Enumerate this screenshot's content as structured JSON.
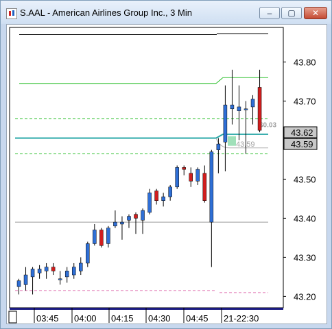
{
  "window": {
    "title": "S.AAL - American Airlines Group Inc., 3 Min",
    "controls": {
      "minimize": "–",
      "maximize": "▢",
      "close": "✕"
    }
  },
  "chart_data": {
    "type": "candlestick",
    "y_ticks": [
      "43.80",
      "43.70",
      "43.60",
      "43.50",
      "43.40",
      "43.30",
      "43.20"
    ],
    "y_tick_values": [
      43.8,
      43.7,
      43.6,
      43.5,
      43.4,
      43.3,
      43.2
    ],
    "x_ticks": [
      "03:45",
      "04:00",
      "04:15",
      "04:30",
      "04:45",
      "21-22:30"
    ],
    "price_labels": {
      "last": "43.62",
      "bid": "43.59",
      "change": "$0.03",
      "bid_marker": "43.59"
    },
    "levels": {
      "black": 43.87,
      "upper_green": 43.745,
      "upper_green_solid": 43.76,
      "green_dashed_upper": 43.655,
      "teal": 43.605,
      "green_dashed_lower": 43.565,
      "gray": 43.39,
      "pink": 43.215
    },
    "candles": [
      {
        "o": 43.225,
        "h": 43.245,
        "l": 43.205,
        "c": 43.24
      },
      {
        "o": 43.23,
        "h": 43.275,
        "l": 43.215,
        "c": 43.255
      },
      {
        "o": 43.25,
        "h": 43.275,
        "l": 43.205,
        "c": 43.27
      },
      {
        "o": 43.26,
        "h": 43.28,
        "l": 43.245,
        "c": 43.27
      },
      {
        "o": 43.265,
        "h": 43.285,
        "l": 43.245,
        "c": 43.275
      },
      {
        "o": 43.275,
        "h": 43.285,
        "l": 43.255,
        "c": 43.265
      },
      {
        "o": 43.245,
        "h": 43.265,
        "l": 43.23,
        "c": 43.245
      },
      {
        "o": 43.25,
        "h": 43.275,
        "l": 43.235,
        "c": 43.265
      },
      {
        "o": 43.255,
        "h": 43.285,
        "l": 43.245,
        "c": 43.275
      },
      {
        "o": 43.265,
        "h": 43.3,
        "l": 43.255,
        "c": 43.285
      },
      {
        "o": 43.285,
        "h": 43.34,
        "l": 43.275,
        "c": 43.335
      },
      {
        "o": 43.335,
        "h": 43.385,
        "l": 43.33,
        "c": 43.37
      },
      {
        "o": 43.37,
        "h": 43.375,
        "l": 43.325,
        "c": 43.33
      },
      {
        "o": 43.335,
        "h": 43.38,
        "l": 43.325,
        "c": 43.375
      },
      {
        "o": 43.38,
        "h": 43.42,
        "l": 43.375,
        "c": 43.39
      },
      {
        "o": 43.385,
        "h": 43.405,
        "l": 43.345,
        "c": 43.39
      },
      {
        "o": 43.395,
        "h": 43.41,
        "l": 43.375,
        "c": 43.405
      },
      {
        "o": 43.41,
        "h": 43.415,
        "l": 43.36,
        "c": 43.4
      },
      {
        "o": 43.395,
        "h": 43.425,
        "l": 43.36,
        "c": 43.42
      },
      {
        "o": 43.415,
        "h": 43.475,
        "l": 43.41,
        "c": 43.465
      },
      {
        "o": 43.47,
        "h": 43.475,
        "l": 43.435,
        "c": 43.445
      },
      {
        "o": 43.445,
        "h": 43.465,
        "l": 43.43,
        "c": 43.455
      },
      {
        "o": 43.455,
        "h": 43.485,
        "l": 43.445,
        "c": 43.48
      },
      {
        "o": 43.48,
        "h": 43.535,
        "l": 43.475,
        "c": 43.53
      },
      {
        "o": 43.53,
        "h": 43.535,
        "l": 43.51,
        "c": 43.525
      },
      {
        "o": 43.515,
        "h": 43.53,
        "l": 43.48,
        "c": 43.495
      },
      {
        "o": 43.495,
        "h": 43.53,
        "l": 43.485,
        "c": 43.525
      },
      {
        "o": 43.515,
        "h": 43.535,
        "l": 43.44,
        "c": 43.445
      },
      {
        "o": 43.39,
        "h": 43.575,
        "l": 43.275,
        "c": 43.57
      },
      {
        "o": 43.575,
        "h": 43.605,
        "l": 43.515,
        "c": 43.59
      },
      {
        "o": 43.595,
        "h": 43.74,
        "l": 43.52,
        "c": 43.69
      },
      {
        "o": 43.68,
        "h": 43.78,
        "l": 43.64,
        "c": 43.69
      },
      {
        "o": 43.675,
        "h": 43.74,
        "l": 43.6,
        "c": 43.685
      },
      {
        "o": 43.68,
        "h": 43.7,
        "l": 43.565,
        "c": 43.68
      },
      {
        "o": 43.685,
        "h": 43.715,
        "l": 43.64,
        "c": 43.705
      },
      {
        "o": 43.735,
        "h": 43.78,
        "l": 43.62,
        "c": 43.625
      }
    ],
    "colors": {
      "up": "#2f6fd6",
      "down": "#d21e1e",
      "green": "#2bbf2b",
      "teal": "#2aa8a8",
      "gray": "#9a9a9a",
      "pink": "#e070b0"
    }
  }
}
